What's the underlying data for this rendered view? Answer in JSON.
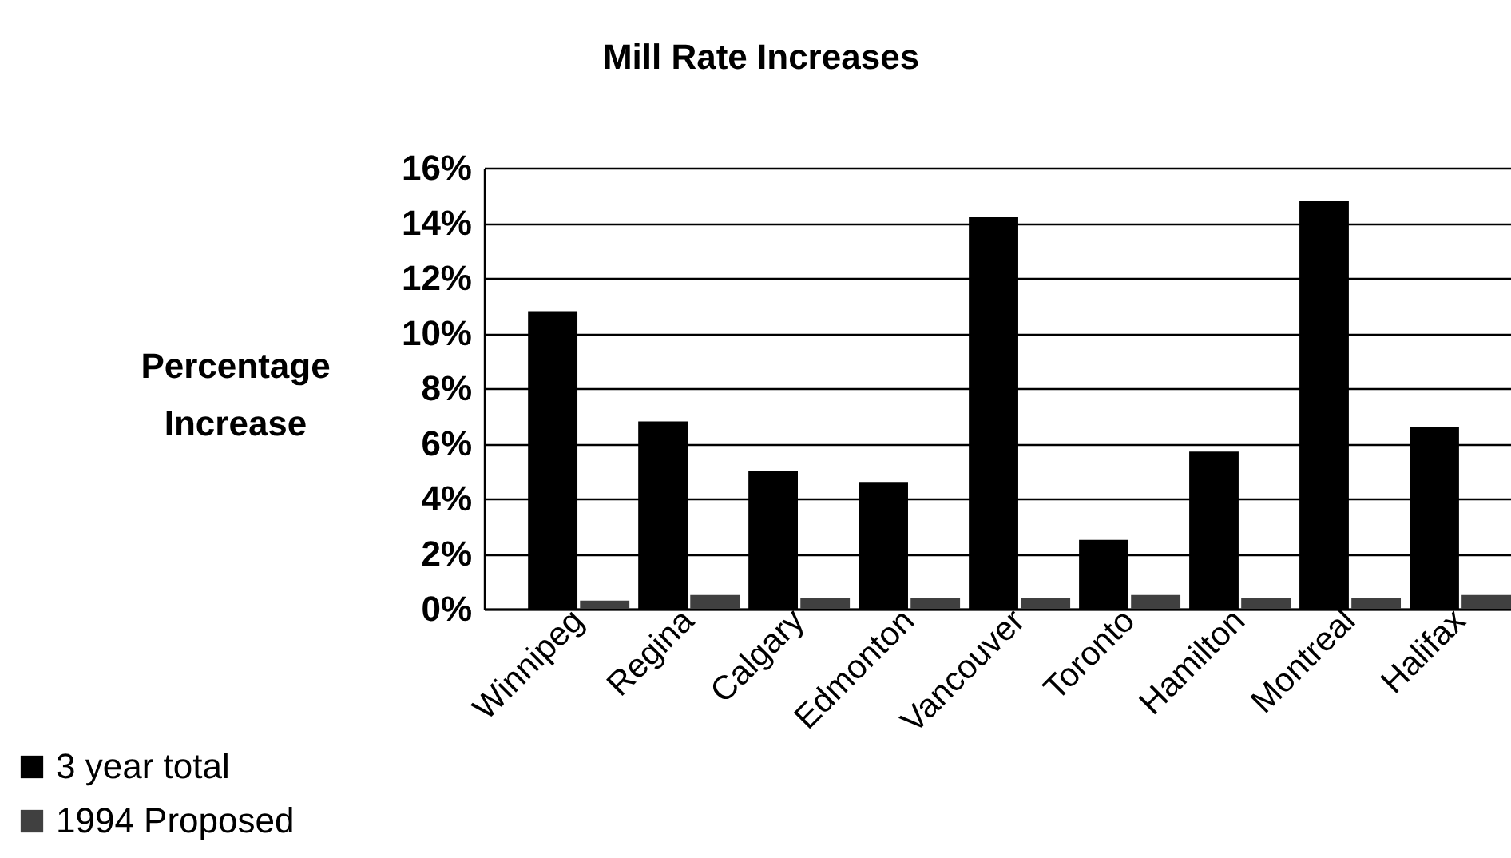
{
  "chart_data": {
    "type": "bar",
    "title": "Mill Rate Increases",
    "ylabel": "Percentage Increase",
    "categories": [
      "Winnipeg",
      "Regina",
      "Calgary",
      "Edmonton",
      "Vancouver",
      "Toronto",
      "Hamilton",
      "Montreal",
      "Halifax"
    ],
    "series": [
      {
        "name": "3 year total",
        "color": "#000000",
        "values": [
          10.8,
          6.8,
          5.0,
          4.6,
          14.2,
          2.5,
          5.7,
          14.8,
          6.6
        ]
      },
      {
        "name": "1994 Proposed",
        "color": "#404040",
        "values": [
          0.3,
          0.5,
          0.4,
          0.4,
          0.4,
          0.5,
          0.4,
          0.4,
          0.5
        ]
      }
    ],
    "ylim": [
      0,
      16
    ],
    "yticks": [
      {
        "value": 0,
        "label": "0%"
      },
      {
        "value": 2,
        "label": "2%"
      },
      {
        "value": 4,
        "label": "4%"
      },
      {
        "value": 6,
        "label": "6%"
      },
      {
        "value": 8,
        "label": "8%"
      },
      {
        "value": 10,
        "label": "10%"
      },
      {
        "value": 12,
        "label": "12%"
      },
      {
        "value": 14,
        "label": "14%"
      },
      {
        "value": 16,
        "label": "16%"
      }
    ],
    "grid": "y",
    "legend": "bottom left"
  }
}
